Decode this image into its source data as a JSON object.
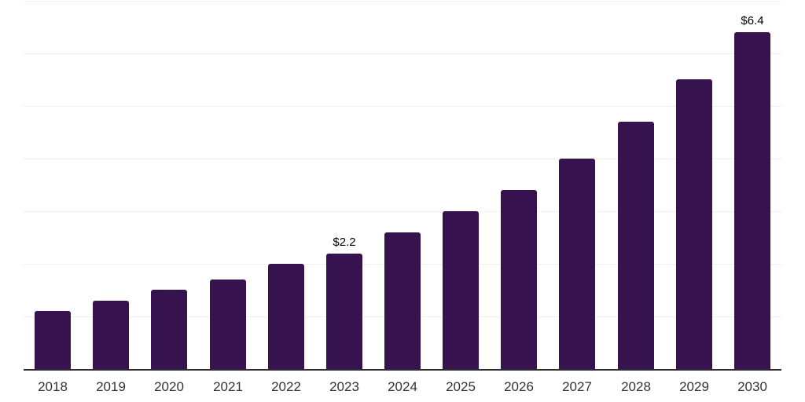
{
  "chart_data": {
    "type": "bar",
    "title": "",
    "xlabel": "",
    "ylabel": "",
    "categories": [
      "2018",
      "2019",
      "2020",
      "2021",
      "2022",
      "2023",
      "2024",
      "2025",
      "2026",
      "2027",
      "2028",
      "2029",
      "2030"
    ],
    "values": [
      1.1,
      1.3,
      1.5,
      1.7,
      2.0,
      2.2,
      2.6,
      3.0,
      3.4,
      4.0,
      4.7,
      5.5,
      6.4
    ],
    "point_labels": [
      null,
      null,
      null,
      null,
      null,
      "$2.2",
      null,
      null,
      null,
      null,
      null,
      null,
      "$6.4"
    ],
    "value_unit_prefix": "$",
    "ylim": [
      0,
      7.05
    ],
    "gridline_values": [
      1,
      2,
      3,
      4,
      5,
      6,
      7
    ],
    "grid": true,
    "legend": "none",
    "colors": {
      "bar": "#36124F",
      "background": "#ffffff",
      "gridline": "#f0f0f0",
      "axis_line": "#2e2e2e",
      "tick_label": "#333333",
      "data_label": "#000000"
    }
  }
}
